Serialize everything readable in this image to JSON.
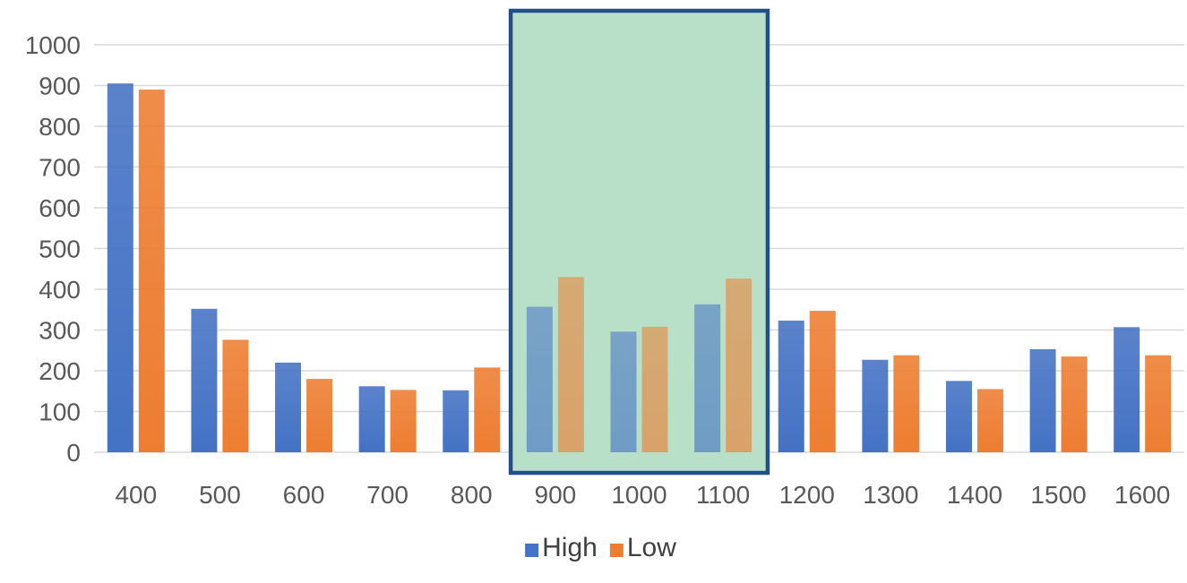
{
  "chart_data": {
    "type": "bar",
    "title": "",
    "xlabel": "",
    "ylabel": "",
    "categories": [
      "400",
      "500",
      "600",
      "700",
      "800",
      "900",
      "1000",
      "1100",
      "1200",
      "1300",
      "1400",
      "1500",
      "1600"
    ],
    "series": [
      {
        "name": "High",
        "color": "#4472c4",
        "values": [
          905,
          352,
          220,
          162,
          152,
          357,
          296,
          363,
          323,
          227,
          175,
          253,
          307
        ]
      },
      {
        "name": "Low",
        "color": "#ed7d31",
        "values": [
          890,
          276,
          180,
          153,
          208,
          430,
          308,
          426,
          347,
          238,
          155,
          235,
          238
        ]
      }
    ],
    "ylim": [
      0,
      1000
    ],
    "yticks": [
      0,
      100,
      200,
      300,
      400,
      500,
      600,
      700,
      800,
      900,
      1000
    ],
    "grid": true,
    "legend_position": "bottom",
    "highlight": {
      "from_category": "900",
      "to_category": "1100",
      "fill_color": "#b9dfc9",
      "border_color": "#234e8c"
    }
  }
}
